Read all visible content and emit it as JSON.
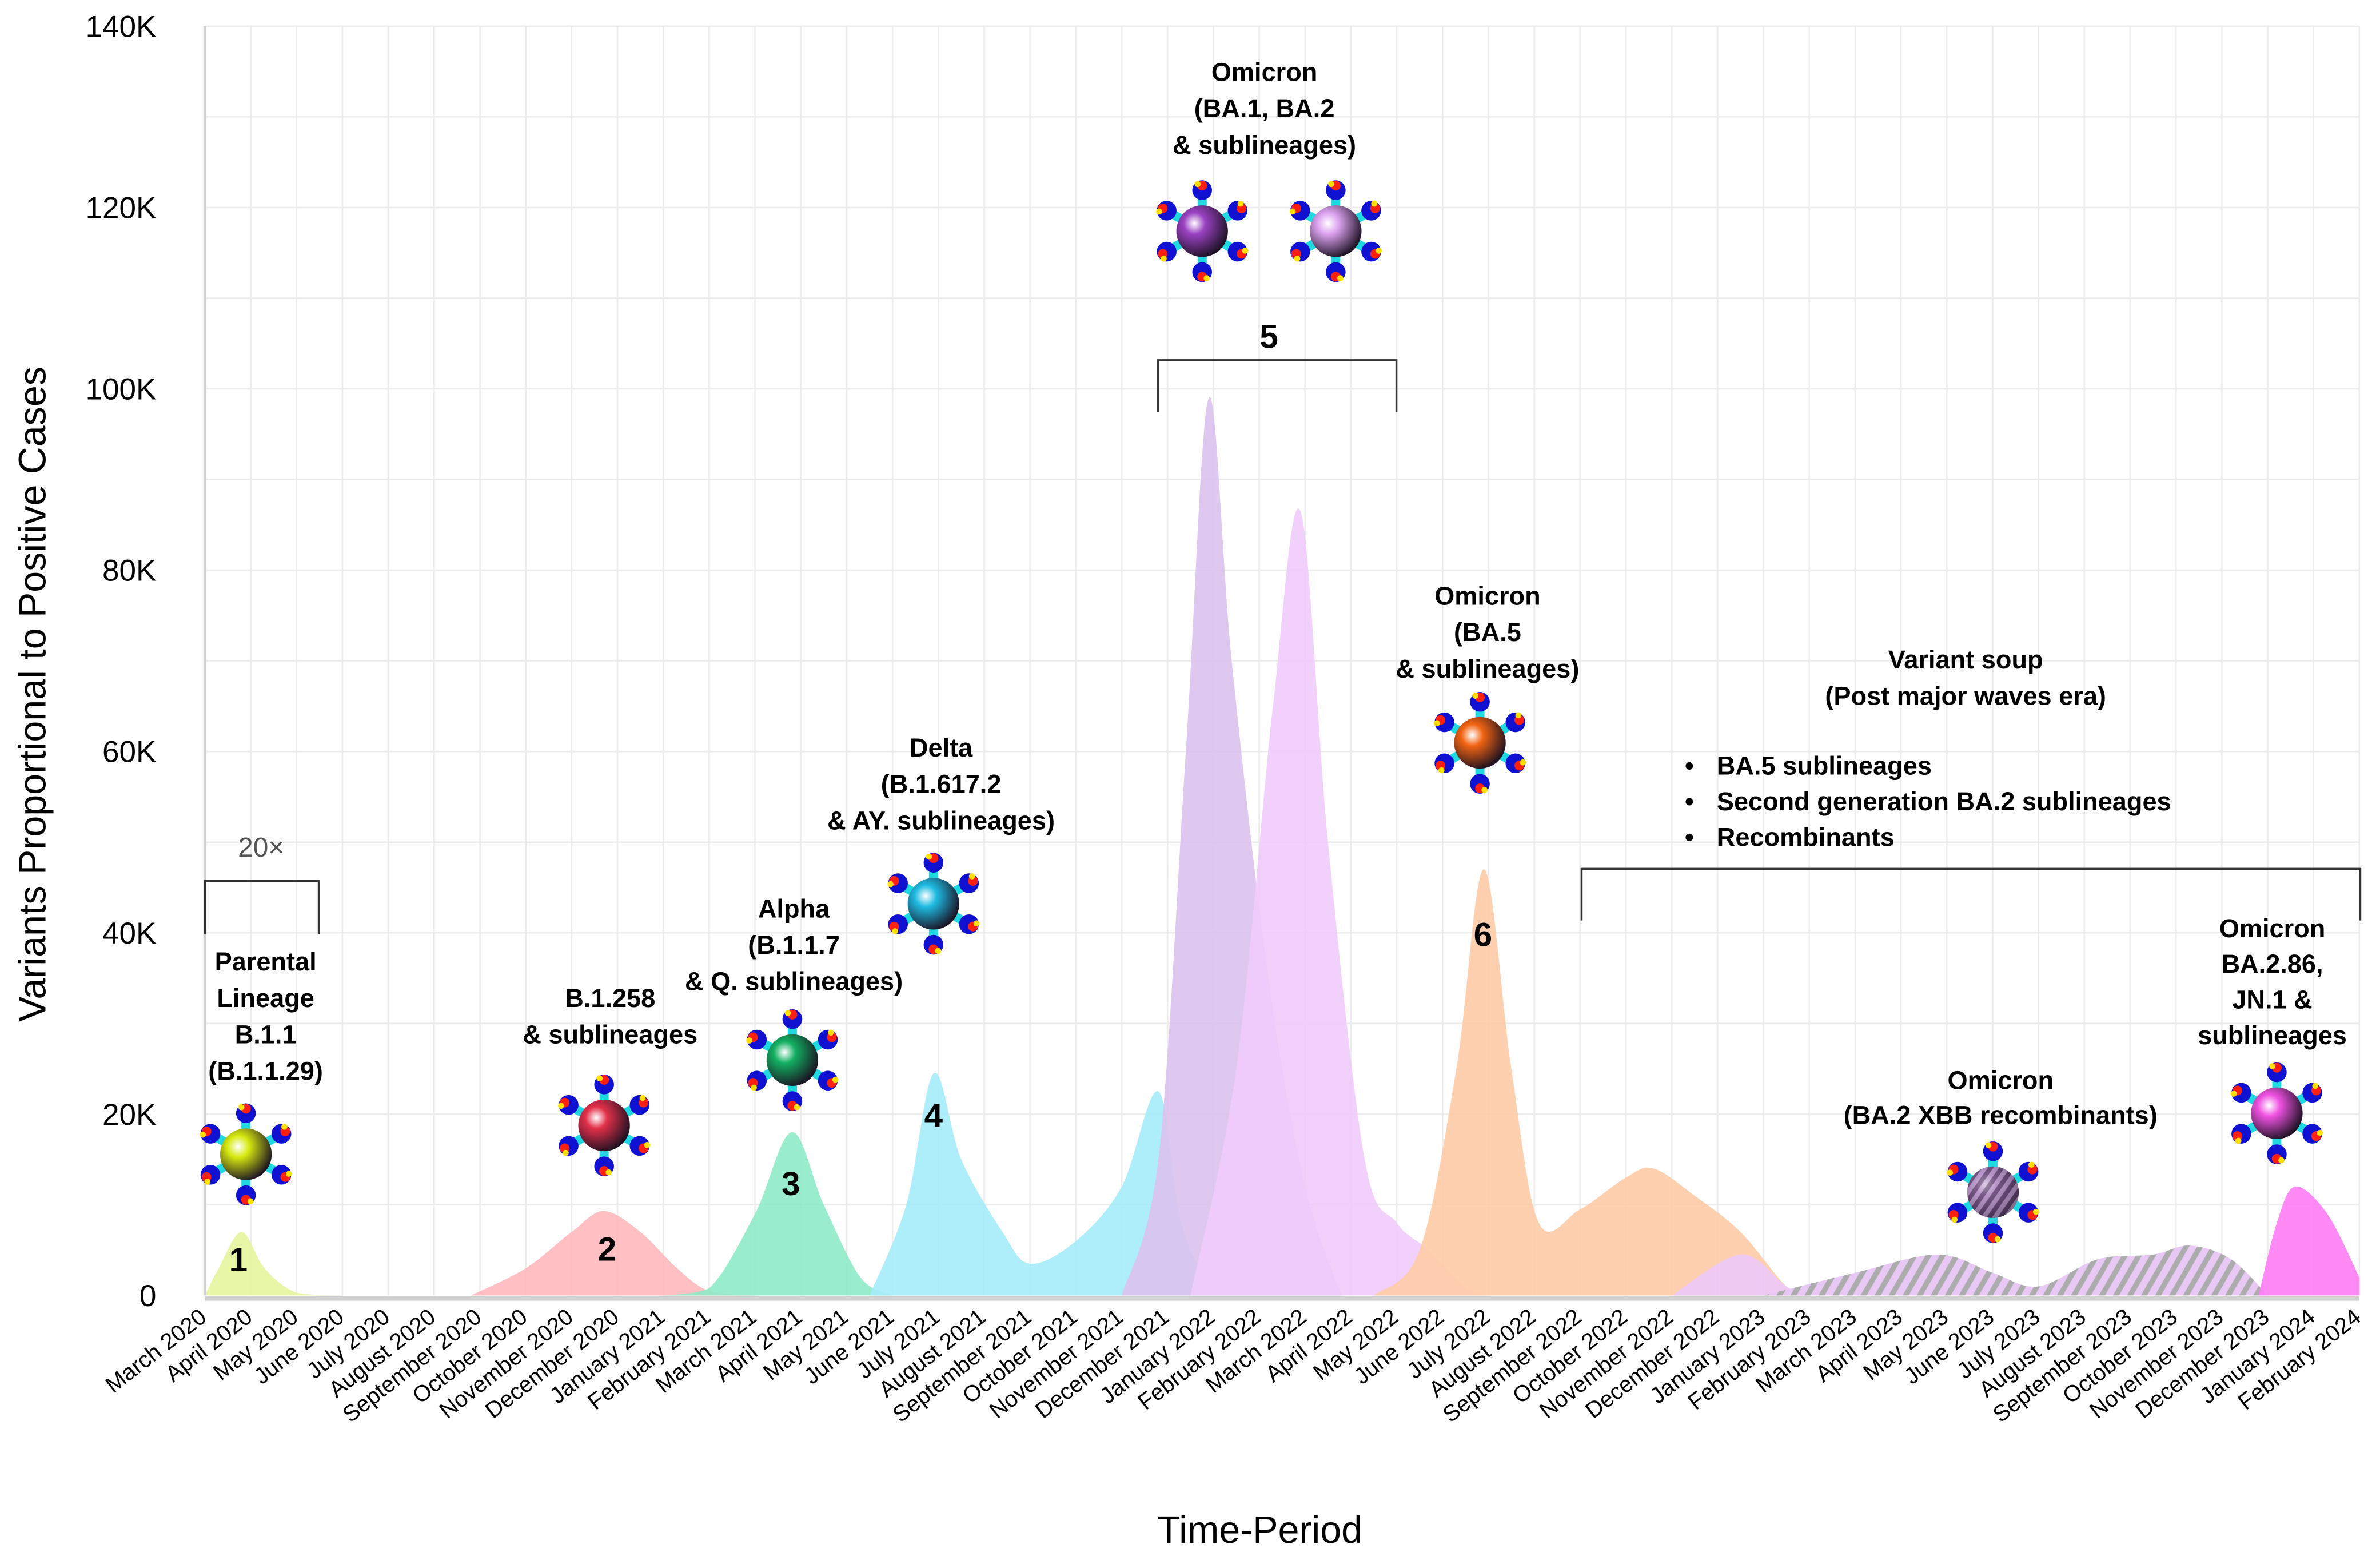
{
  "chart_data": {
    "type": "area",
    "title": "",
    "xlabel": "Time-Period",
    "ylabel": "Variants Proportional to Positive Cases",
    "ylim": [
      0,
      140000
    ],
    "yticks": [
      0,
      20000,
      40000,
      60000,
      80000,
      100000,
      120000,
      140000
    ],
    "ytick_labels": [
      "0",
      "20K",
      "40K",
      "60K",
      "80K",
      "100K",
      "120K",
      "140K"
    ],
    "grid": true,
    "categories": [
      "March 2020",
      "April 2020",
      "May 2020",
      "June 2020",
      "July 2020",
      "August 2020",
      "September 2020",
      "October 2020",
      "November 2020",
      "December 2020",
      "January 2021",
      "February 2021",
      "March 2021",
      "April 2021",
      "May 2021",
      "June 2021",
      "July 2021",
      "August 2021",
      "September 2021",
      "October 2021",
      "November 2021",
      "December 2021",
      "January 2022",
      "February 2022",
      "March 2022",
      "April 2022",
      "May 2022",
      "June 2022",
      "July 2022",
      "August 2022",
      "September 2022",
      "October 2022",
      "November 2022",
      "December 2022",
      "January 2023",
      "February 2023",
      "March 2023",
      "April 2023",
      "May 2023",
      "June 2023",
      "July 2023",
      "August 2023",
      "September 2023",
      "October 2023",
      "November 2023",
      "December 2023",
      "January 2024",
      "February 2024"
    ],
    "series_note": "points are [month index from March 2020, cases in thousands]",
    "series": [
      {
        "name": "Parental Lineage B.1.1 (B.1.1.29)",
        "color": "#e4f59c",
        "points": [
          [
            0,
            0
          ],
          [
            0.3,
            3
          ],
          [
            0.8,
            7
          ],
          [
            1.3,
            3
          ],
          [
            2,
            0.3
          ],
          [
            3,
            0
          ]
        ]
      },
      {
        "name": "B.1.258 & sublineages",
        "color": "#ffb8bd",
        "points": [
          [
            5.8,
            0
          ],
          [
            7,
            3
          ],
          [
            8,
            7
          ],
          [
            8.7,
            9.3
          ],
          [
            9.5,
            7
          ],
          [
            10.3,
            3
          ],
          [
            11,
            0.5
          ],
          [
            12,
            0
          ]
        ]
      },
      {
        "name": "Alpha (B.1.1.7 & Q. sublineages)",
        "color": "#8eeac6",
        "points": [
          [
            10,
            0
          ],
          [
            11,
            0.8
          ],
          [
            12,
            9
          ],
          [
            12.8,
            18
          ],
          [
            13.5,
            10
          ],
          [
            14.3,
            2
          ],
          [
            15,
            0
          ]
        ]
      },
      {
        "name": "Delta (B.1.617.2 & AY. sublineages)",
        "color": "#a5ecf9",
        "points": [
          [
            14.5,
            0
          ],
          [
            15.3,
            10
          ],
          [
            15.9,
            24.5
          ],
          [
            16.5,
            15
          ],
          [
            17.4,
            7
          ],
          [
            18,
            3.5
          ],
          [
            19,
            6
          ],
          [
            20,
            12
          ],
          [
            20.8,
            22.5
          ],
          [
            21.3,
            8
          ],
          [
            22,
            0
          ]
        ]
      },
      {
        "name": "Omicron BA.1",
        "color": "#dcc2ee",
        "points": [
          [
            20,
            0
          ],
          [
            20.8,
            15
          ],
          [
            21.4,
            60
          ],
          [
            21.9,
            99
          ],
          [
            22.4,
            70
          ],
          [
            23.2,
            35
          ],
          [
            24,
            12
          ],
          [
            24.8,
            0
          ]
        ]
      },
      {
        "name": "Omicron BA.2",
        "color": "#efcbfb",
        "points": [
          [
            21.5,
            0
          ],
          [
            22.5,
            25
          ],
          [
            23.3,
            65
          ],
          [
            23.9,
            86.5
          ],
          [
            24.5,
            50
          ],
          [
            25.3,
            15
          ],
          [
            26,
            8
          ],
          [
            26.7,
            5
          ],
          [
            27.5,
            1
          ],
          [
            28,
            0
          ]
        ]
      },
      {
        "name": "Omicron BA.5 & sublineages",
        "color": "#ffcba6",
        "points": [
          [
            25.5,
            0
          ],
          [
            26.5,
            5
          ],
          [
            27.3,
            25
          ],
          [
            27.9,
            47
          ],
          [
            28.5,
            25
          ],
          [
            29.1,
            8
          ],
          [
            30,
            9.5
          ],
          [
            31,
            13
          ],
          [
            31.6,
            14
          ],
          [
            32.5,
            11
          ],
          [
            33.5,
            7
          ],
          [
            34.5,
            1
          ],
          [
            35,
            0
          ]
        ]
      },
      {
        "name": "Second generation BA.2 sublineages",
        "color": "#ecc8fa",
        "points": [
          [
            32,
            0
          ],
          [
            33.5,
            4.5
          ],
          [
            34.5,
            1
          ],
          [
            35,
            0
          ]
        ]
      },
      {
        "name": "Omicron BA.2 XBB recombinants",
        "color": "#e7c6f4",
        "hatch": "#a8a8a8",
        "points": [
          [
            34,
            0
          ],
          [
            36,
            2.5
          ],
          [
            37.8,
            4.5
          ],
          [
            39,
            2.5
          ],
          [
            40,
            1
          ],
          [
            41.3,
            4
          ],
          [
            42.5,
            4.5
          ],
          [
            43.3,
            5.5
          ],
          [
            44.2,
            4
          ],
          [
            45,
            0
          ]
        ]
      },
      {
        "name": "Omicron BA.2.86, JN.1 & sublineages",
        "color": "#ff7cf4",
        "points": [
          [
            44.8,
            0
          ],
          [
            45.2,
            8
          ],
          [
            45.6,
            12
          ],
          [
            46.3,
            9
          ],
          [
            47,
            2
          ]
        ]
      }
    ],
    "annotations": {
      "scale_note": "20×",
      "wave1": {
        "lines": [
          "Parental",
          "Lineage",
          "B.1.1",
          "(B.1.1.29)"
        ],
        "number": "1"
      },
      "wave2": {
        "lines": [
          "B.1.258",
          "& sublineages"
        ],
        "number": "2"
      },
      "wave3": {
        "lines": [
          "Alpha",
          "(B.1.1.7",
          "& Q. sublineages)"
        ],
        "number": "3"
      },
      "wave4": {
        "lines": [
          "Delta",
          "(B.1.617.2",
          "& AY. sublineages)"
        ],
        "number": "4"
      },
      "wave5": {
        "lines": [
          "Omicron",
          "(BA.1, BA.2",
          "& sublineages)"
        ],
        "number": "5"
      },
      "wave6": {
        "lines": [
          "Omicron",
          "(BA.5",
          "& sublineages)"
        ],
        "number": "6"
      },
      "soup": {
        "lines": [
          "Variant soup",
          "(Post major waves era)"
        ],
        "bullets": [
          "BA.5 sublineages",
          "Second generation BA.2 sublineages",
          "Recombinants"
        ]
      },
      "xbb": {
        "lines": [
          "Omicron",
          "(BA.2 XBB recombinants)"
        ]
      },
      "jn1": {
        "lines": [
          "Omicron",
          "BA.2.86,",
          "JN.1 &",
          "sublineages"
        ]
      }
    },
    "virus_icons": [
      {
        "variant": "parental",
        "color": "#d6ea10"
      },
      {
        "variant": "b1258",
        "color": "#e2304a"
      },
      {
        "variant": "alpha",
        "color": "#12b062"
      },
      {
        "variant": "delta",
        "color": "#1ebbe2"
      },
      {
        "variant": "ba1",
        "color": "#9a42c2"
      },
      {
        "variant": "ba2",
        "color": "#dca2f0"
      },
      {
        "variant": "ba5",
        "color": "#f26412"
      },
      {
        "variant": "xbb",
        "color": "#a47cb4",
        "striped": true
      },
      {
        "variant": "jn1",
        "color": "#f052e2"
      }
    ]
  }
}
